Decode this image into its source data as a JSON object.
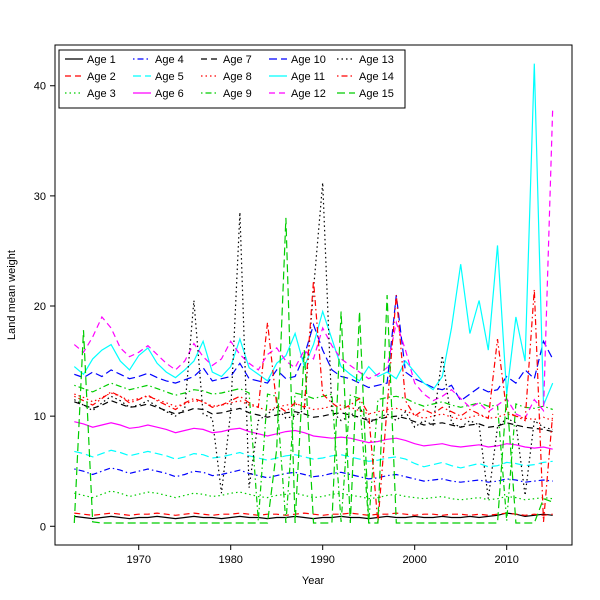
{
  "chart_data": {
    "type": "line",
    "title": "",
    "xlabel": "Year",
    "ylabel": "Land mean weight",
    "x_start": 1963,
    "x_end": 2015,
    "xlim": [
      1960.9,
      2017.1
    ],
    "ylim": [
      -1.7,
      43.7
    ],
    "x_ticks": [
      1970,
      1980,
      1990,
      2000,
      2010
    ],
    "y_ticks": [
      0,
      10,
      20,
      30,
      40
    ],
    "grid": false,
    "legend_position": "topleft",
    "legend_ncol": 5,
    "series": [
      {
        "name": "Age 1",
        "color": "#000000",
        "linetype": "solid",
        "values": [
          0.9,
          0.8,
          0.7,
          0.8,
          0.9,
          0.8,
          0.7,
          0.8,
          0.8,
          0.9,
          0.8,
          0.7,
          0.8,
          0.9,
          0.8,
          0.8,
          0.7,
          0.8,
          0.9,
          0.8,
          0.8,
          0.7,
          0.8,
          0.8,
          0.9,
          0.8,
          0.7,
          0.8,
          0.8,
          0.9,
          0.8,
          0.8,
          0.7,
          0.8,
          0.9,
          0.8,
          0.8,
          0.9,
          0.8,
          0.8,
          0.9,
          0.8,
          0.8,
          0.9,
          0.8,
          0.9,
          1.0,
          1.2,
          1.1,
          0.9,
          1.0,
          1.1,
          1.0
        ]
      },
      {
        "name": "Age 2",
        "color": "#ff0000",
        "linetype": "dashed",
        "values": [
          1.2,
          1.1,
          1.0,
          1.1,
          1.2,
          1.1,
          1.0,
          1.1,
          1.1,
          1.2,
          1.1,
          1.0,
          1.1,
          1.2,
          1.1,
          1.0,
          1.1,
          1.1,
          1.2,
          1.1,
          1.0,
          1.1,
          1.1,
          1.0,
          1.1,
          1.2,
          1.1,
          1.0,
          1.1,
          1.1,
          1.2,
          1.1,
          1.0,
          1.1,
          1.1,
          1.2,
          1.1,
          1.0,
          1.1,
          1.1,
          1.0,
          1.1,
          1.1,
          1.0,
          1.1,
          1.0,
          1.1,
          1.2,
          1.1,
          1.0,
          1.1,
          1.0,
          1.1
        ]
      },
      {
        "name": "Age 3",
        "color": "#00cd00",
        "linetype": "dotted",
        "values": [
          3.0,
          2.8,
          2.6,
          2.9,
          3.2,
          3.0,
          2.7,
          2.9,
          3.1,
          3.0,
          2.8,
          2.6,
          2.8,
          3.0,
          2.9,
          2.7,
          2.8,
          3.0,
          3.1,
          2.9,
          2.7,
          2.6,
          2.8,
          2.9,
          3.0,
          2.8,
          2.6,
          2.7,
          2.9,
          3.0,
          2.8,
          2.7,
          2.5,
          2.6,
          2.8,
          2.9,
          2.7,
          2.6,
          2.5,
          2.6,
          2.7,
          2.5,
          2.4,
          2.5,
          2.6,
          2.4,
          2.5,
          2.7,
          2.6,
          2.4,
          2.5,
          2.6,
          2.5
        ]
      },
      {
        "name": "Age 4",
        "color": "#0000ff",
        "linetype": "dotdash",
        "values": [
          5.2,
          5.0,
          4.7,
          5.0,
          5.3,
          5.1,
          4.8,
          5.0,
          5.2,
          5.0,
          4.8,
          4.5,
          4.7,
          5.0,
          4.9,
          4.6,
          4.7,
          4.9,
          5.1,
          4.8,
          4.6,
          4.4,
          4.6,
          4.8,
          4.9,
          4.7,
          4.5,
          4.6,
          4.8,
          4.9,
          4.7,
          4.5,
          4.3,
          4.4,
          4.6,
          4.7,
          4.5,
          4.3,
          4.1,
          4.2,
          4.3,
          4.1,
          4.0,
          4.1,
          4.2,
          4.0,
          4.1,
          4.3,
          4.2,
          4.0,
          4.1,
          4.2,
          4.1
        ]
      },
      {
        "name": "Age 5",
        "color": "#00ffff",
        "linetype": "longdash",
        "values": [
          6.8,
          6.6,
          6.3,
          6.6,
          6.9,
          6.7,
          6.4,
          6.6,
          6.8,
          6.6,
          6.4,
          6.1,
          6.3,
          6.6,
          6.5,
          6.2,
          6.3,
          6.5,
          6.7,
          6.4,
          6.2,
          6.0,
          6.2,
          6.4,
          6.5,
          6.3,
          6.1,
          6.2,
          6.4,
          6.5,
          6.3,
          6.1,
          5.9,
          6.0,
          6.2,
          6.3,
          6.1,
          5.7,
          5.4,
          5.6,
          5.8,
          5.5,
          5.3,
          5.5,
          5.7,
          5.4,
          5.5,
          5.8,
          5.7,
          5.5,
          5.6,
          5.8,
          5.9
        ]
      },
      {
        "name": "Age 6",
        "color": "#ff00ff",
        "linetype": "solid",
        "values": [
          9.5,
          9.3,
          9.0,
          9.2,
          9.4,
          9.2,
          8.9,
          9.0,
          9.2,
          9.0,
          8.8,
          8.5,
          8.7,
          8.9,
          8.8,
          8.5,
          8.6,
          8.8,
          8.9,
          8.6,
          8.4,
          8.2,
          8.4,
          8.6,
          8.7,
          8.5,
          8.2,
          8.1,
          8.0,
          8.1,
          8.0,
          7.8,
          7.6,
          7.7,
          7.9,
          8.0,
          7.8,
          7.5,
          7.3,
          7.4,
          7.5,
          7.3,
          7.2,
          7.3,
          7.4,
          7.2,
          7.3,
          7.5,
          7.4,
          7.2,
          7.1,
          7.2,
          7.0
        ]
      },
      {
        "name": "Age 7",
        "color": "#000000",
        "linetype": "dashed",
        "values": [
          11.3,
          11.0,
          10.7,
          11.0,
          11.4,
          11.1,
          10.8,
          10.9,
          11.1,
          10.8,
          10.5,
          10.2,
          10.4,
          10.7,
          10.6,
          10.2,
          10.3,
          10.5,
          10.7,
          10.3,
          10.1,
          9.9,
          10.1,
          10.3,
          10.4,
          10.2,
          9.9,
          10.0,
          10.2,
          10.3,
          10.1,
          9.9,
          9.6,
          9.7,
          9.9,
          10.0,
          9.8,
          9.5,
          9.2,
          9.3,
          9.4,
          9.2,
          9.0,
          9.2,
          9.3,
          9.0,
          9.1,
          9.4,
          9.2,
          9.0,
          8.9,
          8.8,
          8.6
        ]
      },
      {
        "name": "Age 8",
        "color": "#ff0000",
        "linetype": "dotted",
        "values": [
          12.0,
          11.7,
          11.3,
          11.7,
          12.1,
          11.8,
          11.4,
          11.6,
          11.8,
          11.5,
          11.2,
          10.9,
          11.1,
          11.4,
          11.3,
          10.9,
          11.0,
          11.2,
          11.4,
          11.0,
          10.8,
          10.5,
          10.8,
          11.0,
          11.1,
          10.9,
          10.6,
          10.7,
          10.9,
          11.0,
          10.8,
          10.5,
          10.2,
          10.4,
          10.6,
          10.7,
          10.5,
          10.1,
          9.8,
          10.0,
          10.2,
          9.9,
          9.7,
          9.9,
          10.1,
          9.8,
          9.9,
          10.2,
          10.0,
          9.8,
          9.7,
          9.9,
          9.6
        ]
      },
      {
        "name": "Age 9",
        "color": "#00cd00",
        "linetype": "dotdash",
        "values": [
          12.8,
          12.5,
          12.2,
          12.6,
          13.0,
          12.7,
          12.4,
          12.6,
          12.8,
          12.5,
          12.2,
          11.9,
          12.1,
          12.4,
          12.3,
          12.0,
          12.1,
          12.3,
          12.5,
          12.1,
          0.5,
          12.0,
          11.8,
          0.3,
          12.1,
          11.9,
          11.6,
          11.8,
          12.0,
          0.4,
          11.9,
          11.6,
          0.3,
          11.5,
          11.7,
          11.8,
          11.6,
          11.2,
          10.9,
          11.1,
          11.3,
          11.0,
          10.8,
          11.0,
          11.2,
          10.9,
          11.0,
          0.5,
          11.1,
          10.8,
          10.7,
          10.9,
          10.6
        ]
      },
      {
        "name": "Age 10",
        "color": "#0000ff",
        "linetype": "longdash",
        "values": [
          13.8,
          13.5,
          14.0,
          13.6,
          14.2,
          13.8,
          13.4,
          13.6,
          13.9,
          13.5,
          13.2,
          13.0,
          13.3,
          13.6,
          14.4,
          13.2,
          13.4,
          13.6,
          14.8,
          13.4,
          13.2,
          13.0,
          14.2,
          13.4,
          13.6,
          15.5,
          18.3,
          16.0,
          14.2,
          13.6,
          13.4,
          13.0,
          12.6,
          12.8,
          13.0,
          21.0,
          14.0,
          13.4,
          13.0,
          12.6,
          12.4,
          12.8,
          11.4,
          12.0,
          12.6,
          12.2,
          12.4,
          13.6,
          13.0,
          14.2,
          13.4,
          16.8,
          15.2
        ]
      },
      {
        "name": "Age 11",
        "color": "#00ffff",
        "linetype": "solid",
        "values": [
          14.5,
          13.8,
          15.2,
          16.0,
          16.5,
          15.0,
          14.2,
          15.5,
          16.2,
          14.8,
          14.0,
          13.5,
          14.2,
          15.0,
          16.8,
          14.0,
          13.6,
          14.5,
          17.0,
          14.4,
          13.8,
          13.2,
          14.8,
          15.5,
          17.5,
          14.5,
          16.5,
          19.5,
          17.0,
          14.5,
          13.8,
          13.2,
          14.5,
          13.6,
          14.0,
          13.4,
          15.0,
          14.0,
          13.0,
          12.4,
          13.6,
          18.0,
          23.8,
          17.5,
          20.5,
          16.0,
          25.5,
          12.0,
          19.0,
          15.0,
          42.0,
          11.0,
          13.0
        ]
      },
      {
        "name": "Age 12",
        "color": "#ff00ff",
        "linetype": "dashed",
        "values": [
          16.5,
          15.8,
          17.2,
          19.0,
          18.0,
          16.2,
          15.4,
          15.8,
          16.4,
          15.6,
          14.8,
          14.2,
          15.0,
          16.6,
          15.4,
          14.6,
          15.2,
          16.8,
          15.6,
          14.8,
          14.2,
          15.6,
          16.2,
          15.0,
          14.4,
          16.0,
          15.2,
          18.0,
          16.4,
          15.2,
          14.6,
          14.0,
          13.4,
          13.8,
          14.4,
          18.5,
          16.0,
          13.0,
          12.0,
          11.4,
          11.8,
          12.4,
          11.6,
          10.8,
          11.2,
          10.4,
          11.0,
          11.6,
          10.2,
          9.8,
          11.5,
          10.5,
          38.0
        ]
      },
      {
        "name": "Age 13",
        "color": "#000000",
        "linetype": "dotted",
        "values": [
          11.5,
          11.0,
          10.5,
          11.2,
          11.8,
          11.4,
          10.8,
          11.0,
          11.4,
          10.9,
          10.4,
          10.0,
          10.6,
          20.5,
          10.2,
          9.8,
          3.0,
          10.4,
          28.5,
          3.5,
          9.6,
          10.2,
          10.8,
          9.8,
          10.0,
          10.6,
          21.5,
          31.2,
          10.4,
          9.6,
          10.0,
          10.8,
          9.4,
          9.8,
          10.2,
          9.6,
          10.4,
          9.0,
          9.6,
          9.2,
          15.5,
          9.4,
          9.0,
          9.6,
          9.2,
          2.5,
          9.0,
          9.8,
          9.4,
          2.8,
          9.6,
          9.0,
          8.8
        ]
      },
      {
        "name": "Age 14",
        "color": "#ff0000",
        "linetype": "dotdash",
        "values": [
          11.8,
          11.4,
          11.0,
          11.6,
          12.2,
          11.8,
          11.2,
          11.5,
          11.9,
          11.4,
          11.0,
          10.6,
          11.2,
          11.6,
          11.3,
          10.8,
          11.0,
          11.4,
          11.8,
          11.2,
          10.8,
          18.5,
          11.0,
          10.4,
          11.2,
          10.8,
          22.3,
          12.0,
          11.2,
          10.6,
          11.0,
          11.6,
          10.2,
          0.3,
          10.8,
          21.0,
          11.4,
          10.0,
          10.6,
          10.2,
          10.8,
          10.4,
          10.0,
          10.6,
          10.2,
          9.8,
          17.0,
          10.4,
          10.0,
          9.6,
          21.5,
          0.4,
          10.2
        ]
      },
      {
        "name": "Age 15",
        "color": "#00cd00",
        "linetype": "longdash",
        "values": [
          0.3,
          17.8,
          0.4,
          0.3,
          0.3,
          0.3,
          0.3,
          0.3,
          0.3,
          0.3,
          0.3,
          0.3,
          0.3,
          0.3,
          0.3,
          0.3,
          0.3,
          0.3,
          0.3,
          0.3,
          0.3,
          0.3,
          7.0,
          28.0,
          0.3,
          16.0,
          0.3,
          0.3,
          0.3,
          19.5,
          0.3,
          19.5,
          0.3,
          0.3,
          21.0,
          0.3,
          0.3,
          0.3,
          0.3,
          0.3,
          0.3,
          0.3,
          0.3,
          0.3,
          0.3,
          0.3,
          0.3,
          12.0,
          0.3,
          0.3,
          0.3,
          2.5,
          2.2
        ]
      }
    ]
  }
}
